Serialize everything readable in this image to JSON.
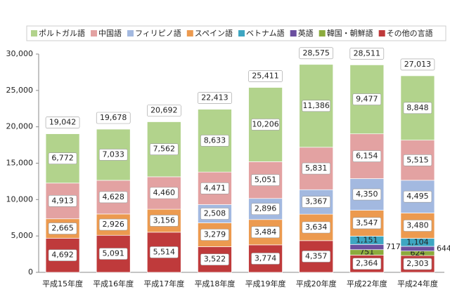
{
  "chart_data": {
    "type": "stacked-bar",
    "categories": [
      "平成15年度",
      "平成16年度",
      "平成17年度",
      "平成18年度",
      "平成19年度",
      "平成20年度",
      "平成22年度",
      "平成24年度"
    ],
    "series": [
      {
        "name": "ポルトガル語",
        "color": "#b2d38c",
        "values": [
          6772,
          7033,
          7562,
          8633,
          10206,
          11386,
          9477,
          8848
        ],
        "value_labels": [
          "6,772",
          "7,033",
          "7,562",
          "8,633",
          "10,206",
          "11,386",
          "9,477",
          "8,848"
        ]
      },
      {
        "name": "中国語",
        "color": "#e3a2a2",
        "values": [
          4913,
          4628,
          4460,
          4471,
          5051,
          5831,
          6154,
          5515
        ],
        "value_labels": [
          "4,913",
          "4,628",
          "4,460",
          "4,471",
          "5,051",
          "5,831",
          "6,154",
          "5,515"
        ]
      },
      {
        "name": "フィリピノ語",
        "color": "#a3b9e0",
        "values": [
          null,
          null,
          null,
          2508,
          2896,
          3367,
          4350,
          4495
        ],
        "value_labels": [
          null,
          null,
          null,
          "2,508",
          "2,896",
          "3,367",
          "4,350",
          "4,495"
        ]
      },
      {
        "name": "スペイン語",
        "color": "#ec9a4f",
        "values": [
          2665,
          2926,
          3156,
          3279,
          3484,
          3634,
          3547,
          3480
        ],
        "value_labels": [
          "2,665",
          "2,926",
          "3,156",
          "3,279",
          "3,484",
          "3,634",
          "3,547",
          "3,480"
        ]
      },
      {
        "name": "ベトナム語",
        "color": "#3ea6c2",
        "values": [
          null,
          null,
          null,
          null,
          null,
          null,
          1151,
          1104
        ],
        "value_labels": [
          null,
          null,
          null,
          null,
          null,
          null,
          "1,151",
          "1,104"
        ]
      },
      {
        "name": "英語",
        "color": "#6b4f9f",
        "values": [
          null,
          null,
          null,
          null,
          null,
          null,
          717,
          644
        ]
      },
      {
        "name": "韓国・朝鮮語",
        "color": "#8bab3d",
        "values": [
          null,
          null,
          null,
          null,
          null,
          null,
          751,
          624
        ]
      },
      {
        "name": "その他の言語",
        "color": "#bf3a3b",
        "values": [
          4692,
          5091,
          5514,
          3522,
          3774,
          4357,
          2364,
          2303
        ],
        "value_labels": [
          "4,692",
          "5,091",
          "5,514",
          "3,522",
          "3,774",
          "4,357",
          "2,364",
          "2,303"
        ]
      }
    ],
    "totals": {
      "values": [
        19042,
        19678,
        20692,
        22413,
        25411,
        28575,
        28511,
        27013
      ],
      "value_labels": [
        "19,042",
        "19,678",
        "20,692",
        "22,413",
        "25,411",
        "28,575",
        "28,511",
        "27,013"
      ]
    },
    "ylim": [
      0,
      30000
    ],
    "yticks": [
      0,
      {
        "value": 5000,
        "label": "5,000"
      },
      {
        "value": 10000,
        "label": "10,000"
      },
      {
        "value": 15000,
        "label": "15,000"
      },
      {
        "value": 20000,
        "label": "20,000"
      },
      {
        "value": 25000,
        "label": "25,000"
      },
      {
        "value": 30000,
        "label": "30,000"
      }
    ],
    "grid": false
  }
}
